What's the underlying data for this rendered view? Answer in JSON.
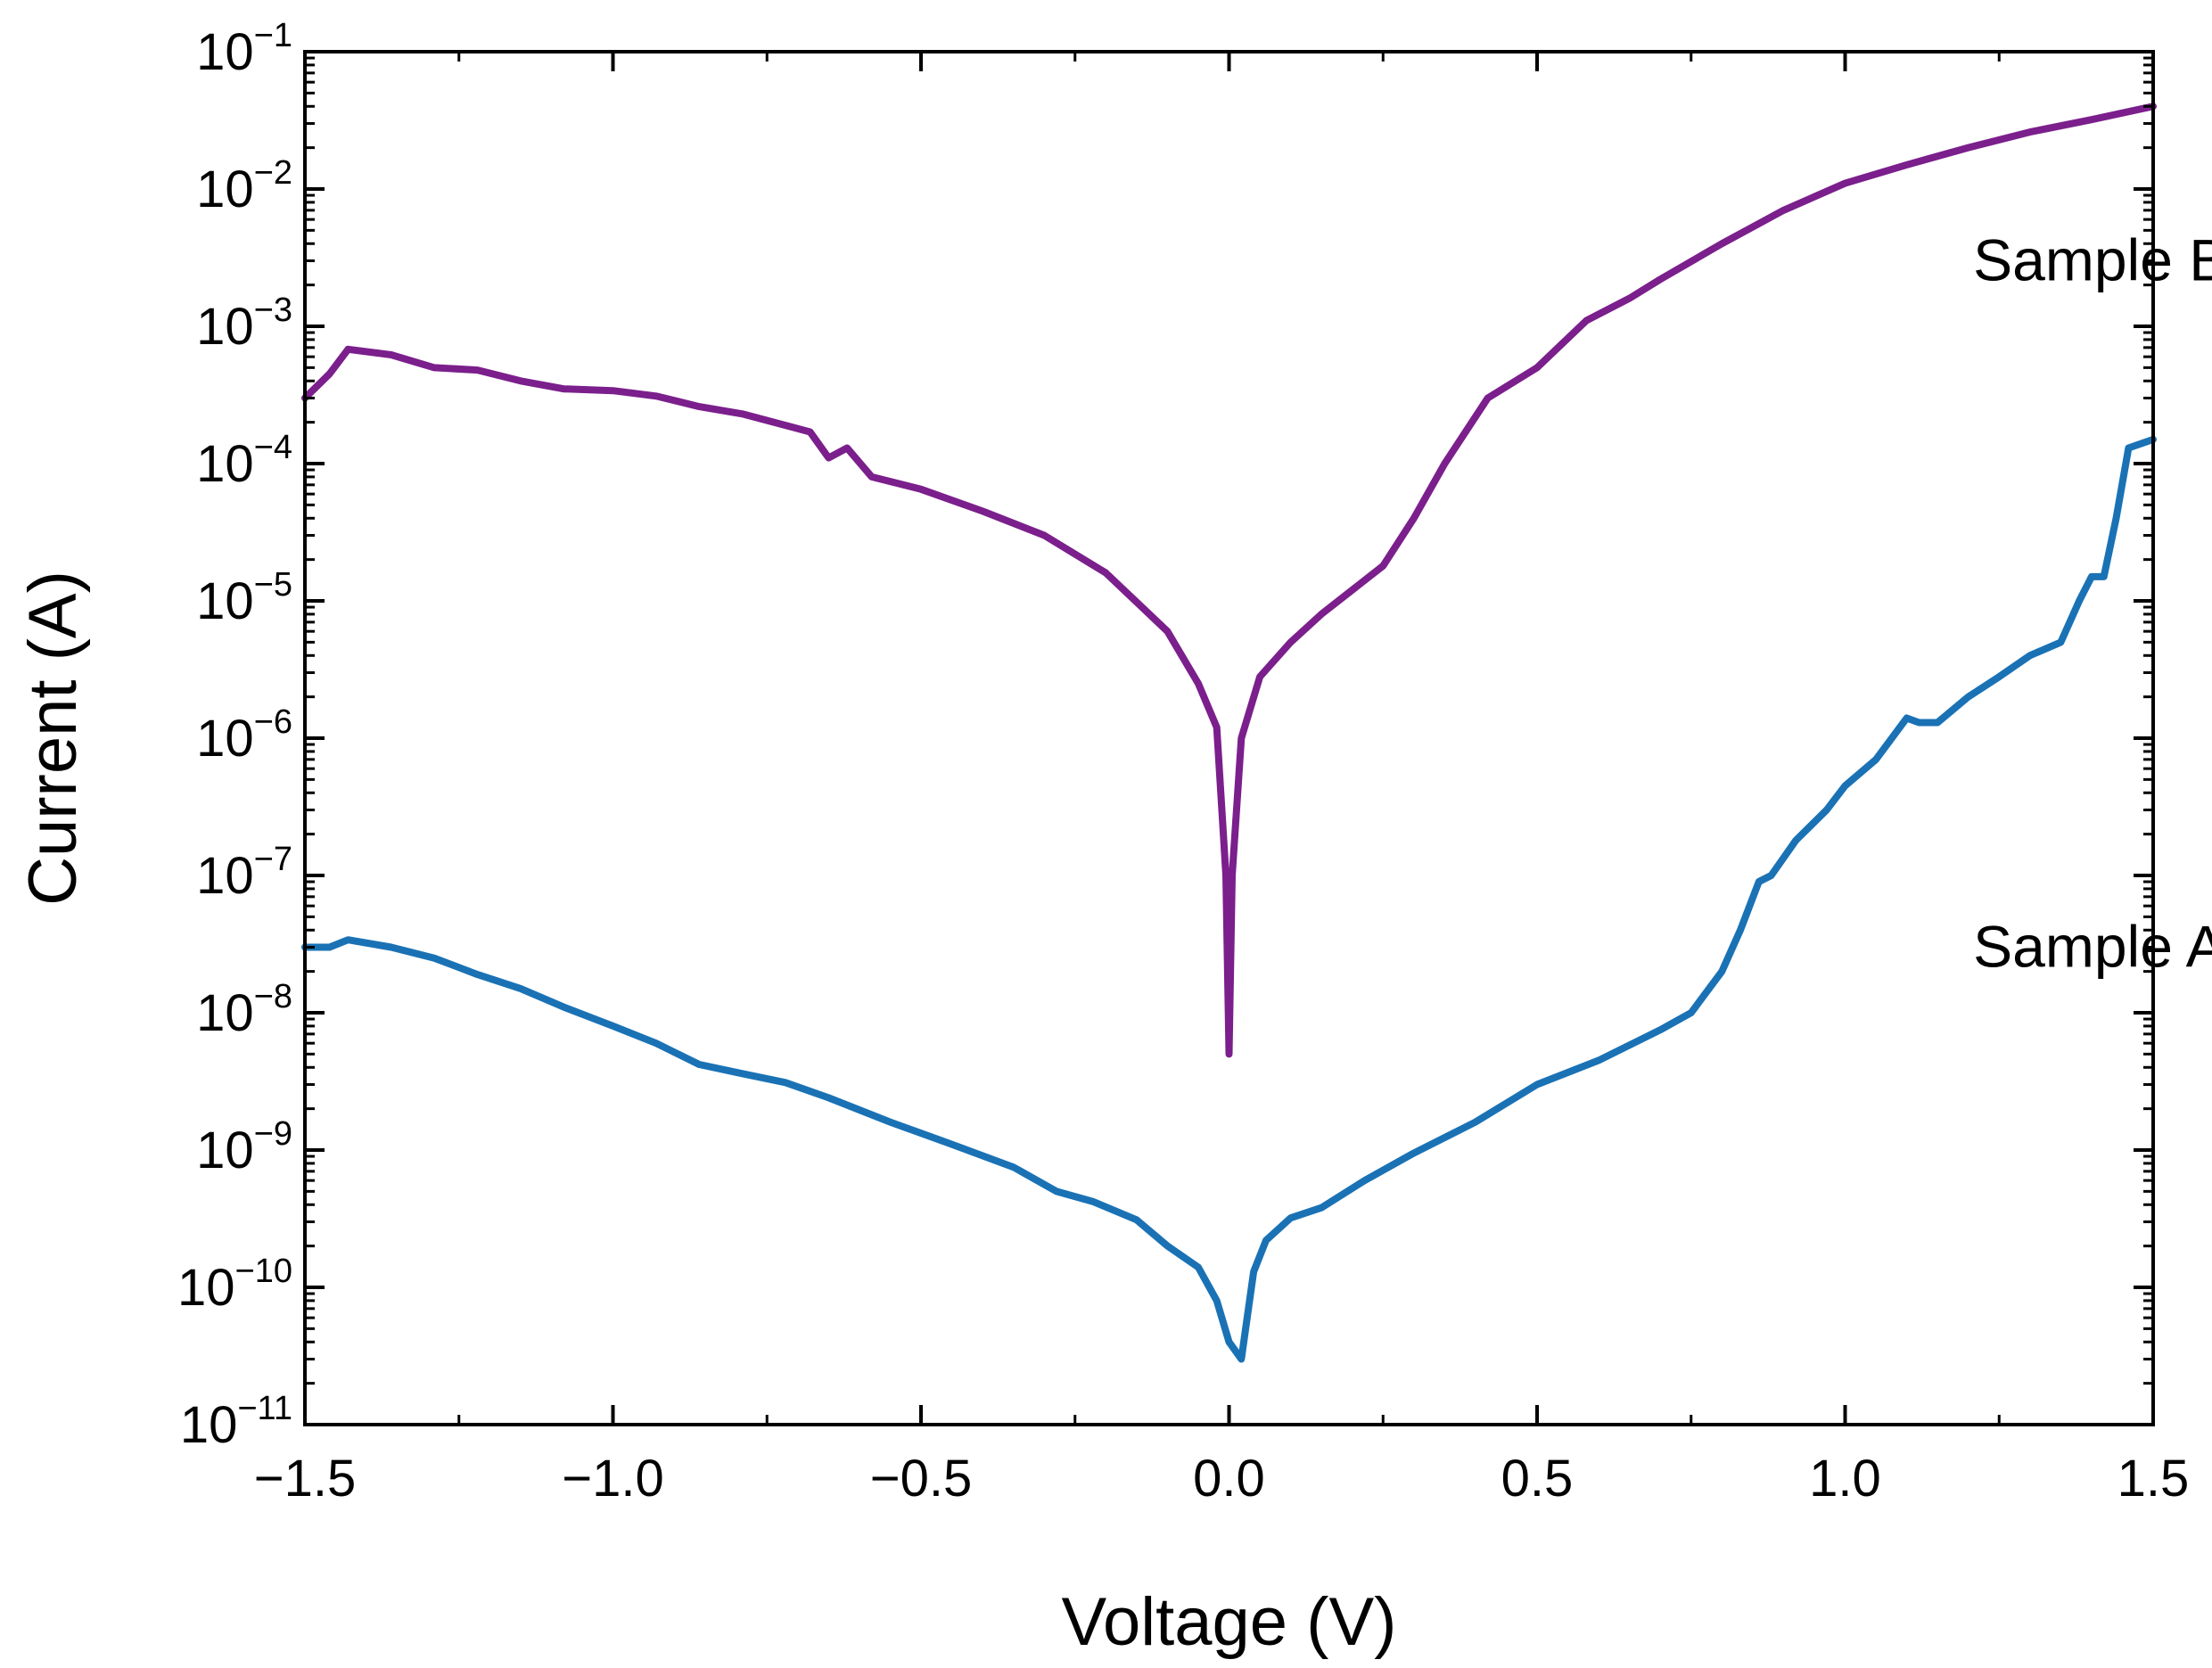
{
  "chart_data": {
    "type": "line",
    "title": "",
    "xlabel": "Voltage (V)",
    "ylabel": "Current (A)",
    "xlim": [
      -1.5,
      1.5
    ],
    "ylim": [
      1e-11,
      0.1
    ],
    "yscale": "log",
    "grid": false,
    "x_ticks": [
      -1.5,
      -1.0,
      -0.5,
      0.0,
      0.5,
      1.0,
      1.5
    ],
    "x_tick_labels": [
      "−1.5",
      "−1.0",
      "−0.5",
      "0.0",
      "0.5",
      "1.0",
      "1.5"
    ],
    "y_ticks": [
      {
        "value": 0.1,
        "base": "10",
        "exp": "−1"
      },
      {
        "value": 0.01,
        "base": "10",
        "exp": "−2"
      },
      {
        "value": 0.001,
        "base": "10",
        "exp": "−3"
      },
      {
        "value": 0.0001,
        "base": "10",
        "exp": "−4"
      },
      {
        "value": 1e-05,
        "base": "10",
        "exp": "−5"
      },
      {
        "value": 1e-06,
        "base": "10",
        "exp": "−6"
      },
      {
        "value": 1e-07,
        "base": "10",
        "exp": "−7"
      },
      {
        "value": 1e-08,
        "base": "10",
        "exp": "−8"
      },
      {
        "value": 1e-09,
        "base": "10",
        "exp": "−9"
      },
      {
        "value": 1e-10,
        "base": "10",
        "exp": "−10"
      },
      {
        "value": 1e-11,
        "base": "10",
        "exp": "−11"
      }
    ],
    "series": [
      {
        "name": "Sample B",
        "color": "#7b1f8c",
        "label_anchor": {
          "x": 1.15,
          "y": 0.003
        },
        "x": [
          -1.5,
          -1.46,
          -1.43,
          -1.36,
          -1.29,
          -1.22,
          -1.15,
          -1.08,
          -1.0,
          -0.93,
          -0.86,
          -0.79,
          -0.72,
          -0.68,
          -0.65,
          -0.62,
          -0.58,
          -0.5,
          -0.4,
          -0.3,
          -0.2,
          -0.1,
          -0.05,
          -0.02,
          -0.005,
          0.0,
          0.005,
          0.02,
          0.05,
          0.1,
          0.15,
          0.2,
          0.25,
          0.3,
          0.35,
          0.42,
          0.5,
          0.58,
          0.65,
          0.7,
          0.8,
          0.9,
          1.0,
          1.1,
          1.2,
          1.3,
          1.4,
          1.5
        ],
        "y": [
          0.0003,
          0.00045,
          0.00068,
          0.00062,
          0.0005,
          0.00048,
          0.0004,
          0.00035,
          0.00034,
          0.00031,
          0.00026,
          0.00023,
          0.00019,
          0.00017,
          0.00011,
          0.00013,
          8e-05,
          6.5e-05,
          4.5e-05,
          3e-05,
          1.6e-05,
          6e-06,
          2.5e-06,
          1.2e-06,
          1e-07,
          5e-09,
          1e-07,
          1e-06,
          2.8e-06,
          5e-06,
          8e-06,
          1.2e-05,
          1.8e-05,
          4e-05,
          0.0001,
          0.0003,
          0.0005,
          0.0011,
          0.0016,
          0.0022,
          0.004,
          0.007,
          0.011,
          0.015,
          0.02,
          0.026,
          0.032,
          0.04
        ]
      },
      {
        "name": "Sample A",
        "color": "#1a72b5",
        "label_anchor": {
          "x": 1.15,
          "y": 3e-08
        },
        "x": [
          -1.5,
          -1.46,
          -1.43,
          -1.36,
          -1.29,
          -1.22,
          -1.15,
          -1.08,
          -1.0,
          -0.93,
          -0.86,
          -0.79,
          -0.72,
          -0.65,
          -0.55,
          -0.45,
          -0.35,
          -0.28,
          -0.22,
          -0.15,
          -0.1,
          -0.05,
          -0.02,
          0.0,
          0.02,
          0.04,
          0.06,
          0.1,
          0.15,
          0.22,
          0.3,
          0.4,
          0.5,
          0.6,
          0.7,
          0.75,
          0.8,
          0.83,
          0.86,
          0.88,
          0.92,
          0.97,
          1.0,
          1.05,
          1.1,
          1.12,
          1.15,
          1.2,
          1.25,
          1.3,
          1.35,
          1.38,
          1.4,
          1.42,
          1.44,
          1.46,
          1.5
        ],
        "y": [
          3e-08,
          3e-08,
          3.4e-08,
          3e-08,
          2.5e-08,
          1.9e-08,
          1.5e-08,
          1.1e-08,
          8e-09,
          6e-09,
          4.2e-09,
          3.6e-09,
          3.1e-09,
          2.4e-09,
          1.6e-09,
          1.1e-09,
          7.5e-10,
          5e-10,
          4.2e-10,
          3.1e-10,
          2e-10,
          1.4e-10,
          8e-11,
          4e-11,
          3e-11,
          1.3e-10,
          2.2e-10,
          3.2e-10,
          3.8e-10,
          6e-10,
          9.5e-10,
          1.6e-09,
          3e-09,
          4.5e-09,
          7.5e-09,
          1e-08,
          2e-08,
          4e-08,
          9e-08,
          1e-07,
          1.8e-07,
          3e-07,
          4.5e-07,
          7e-07,
          1.4e-06,
          1.3e-06,
          1.3e-06,
          2e-06,
          2.8e-06,
          4e-06,
          5e-06,
          1e-05,
          1.5e-05,
          1.5e-05,
          4e-05,
          0.00013,
          0.00015
        ]
      }
    ]
  }
}
